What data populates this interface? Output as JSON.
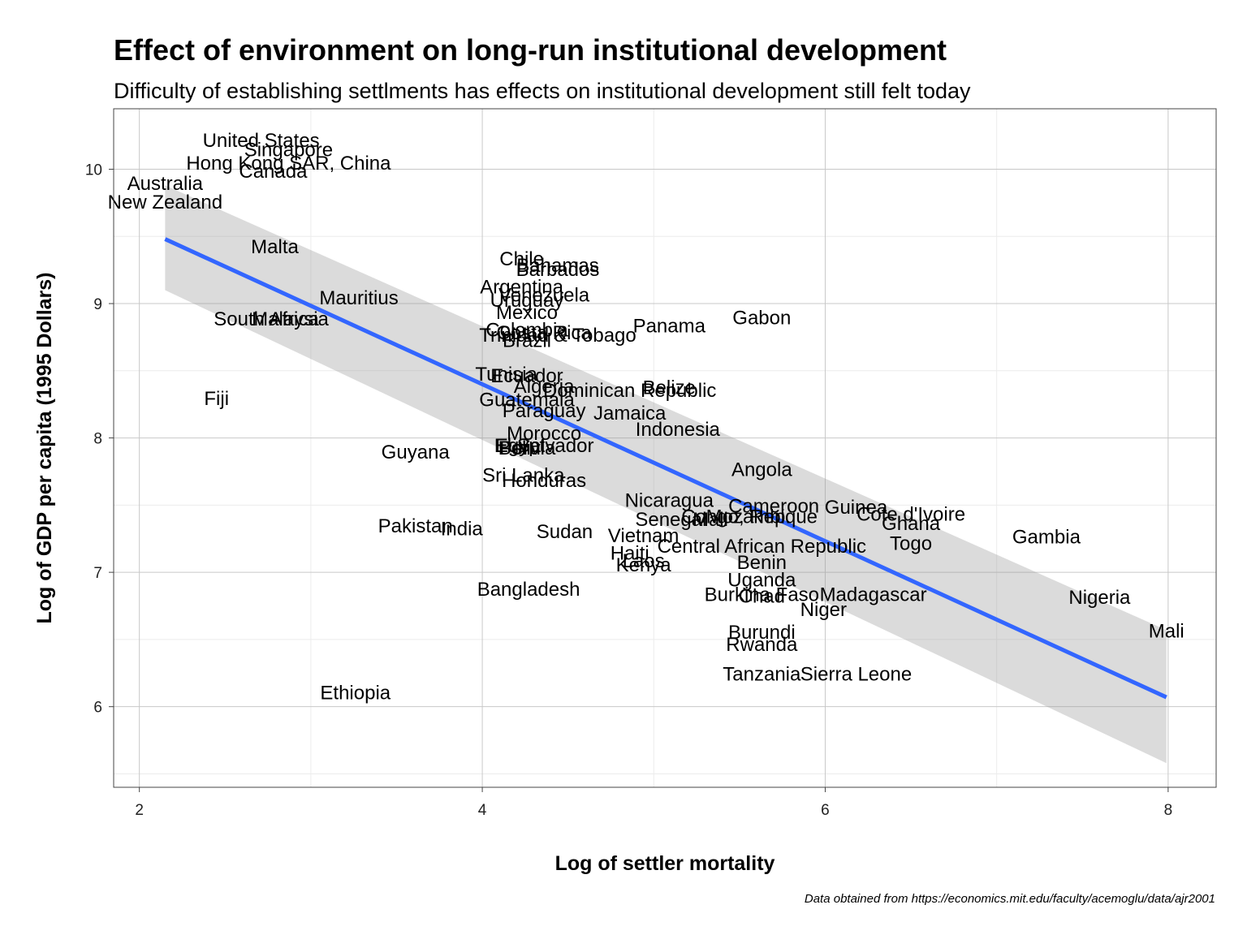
{
  "chart_data": {
    "type": "scatter",
    "title": "Effect of environment on long-run institutional development",
    "subtitle": "Difficulty of establishing settlments has effects on institutional development still felt today",
    "xlabel": "Log of settler mortality",
    "ylabel": "Log of GDP per capita (1995 Dollars)",
    "caption": "Data obtained from https://economics.mit.edu/faculty/acemoglu/data/ajr2001",
    "xlim": [
      1.85,
      8.28
    ],
    "ylim": [
      5.4,
      10.45
    ],
    "x_ticks": [
      "2",
      "4",
      "6",
      "8"
    ],
    "y_ticks": [
      "6",
      "7",
      "8",
      "9",
      "10"
    ],
    "grid": true,
    "smooth": {
      "method": "linear",
      "color": "#3366ff",
      "start": [
        2.15,
        9.48
      ],
      "end": [
        7.99,
        6.07
      ],
      "band_start": [
        9.1,
        9.88
      ],
      "band_end": [
        5.58,
        6.57
      ]
    },
    "points": [
      {
        "label": "United States",
        "x": 2.71,
        "y": 10.22
      },
      {
        "label": "Singapore",
        "x": 2.87,
        "y": 10.15
      },
      {
        "label": "Hong Kong SAR, China",
        "x": 2.87,
        "y": 10.05
      },
      {
        "label": "Canada",
        "x": 2.78,
        "y": 9.99
      },
      {
        "label": "Australia",
        "x": 2.15,
        "y": 9.9
      },
      {
        "label": "New Zealand",
        "x": 2.15,
        "y": 9.76
      },
      {
        "label": "Malta",
        "x": 2.79,
        "y": 9.43
      },
      {
        "label": "Mauritius",
        "x": 3.28,
        "y": 9.05
      },
      {
        "label": "South Africa",
        "x": 2.74,
        "y": 8.89
      },
      {
        "label": "Malaysia",
        "x": 2.88,
        "y": 8.89
      },
      {
        "label": "Fiji",
        "x": 2.45,
        "y": 8.3
      },
      {
        "label": "Guyana",
        "x": 3.61,
        "y": 7.9
      },
      {
        "label": "Pakistan",
        "x": 3.61,
        "y": 7.35
      },
      {
        "label": "India",
        "x": 3.88,
        "y": 7.33
      },
      {
        "label": "Ethiopia",
        "x": 3.26,
        "y": 6.11
      },
      {
        "label": "Chile",
        "x": 4.23,
        "y": 9.34
      },
      {
        "label": "Bahamas",
        "x": 4.44,
        "y": 9.29
      },
      {
        "label": "Barbados",
        "x": 4.44,
        "y": 9.26
      },
      {
        "label": "Argentina",
        "x": 4.23,
        "y": 9.13
      },
      {
        "label": "Venezuela",
        "x": 4.36,
        "y": 9.07
      },
      {
        "label": "Uruguay",
        "x": 4.26,
        "y": 9.03
      },
      {
        "label": "Mexico",
        "x": 4.26,
        "y": 8.94
      },
      {
        "label": "Colombia",
        "x": 4.26,
        "y": 8.81
      },
      {
        "label": "Costa Rica",
        "x": 4.36,
        "y": 8.79
      },
      {
        "label": "Trinidad & Tobago",
        "x": 4.44,
        "y": 8.77
      },
      {
        "label": "Brazil",
        "x": 4.26,
        "y": 8.73
      },
      {
        "label": "Panama",
        "x": 5.09,
        "y": 8.84
      },
      {
        "label": "Gabon",
        "x": 5.63,
        "y": 8.9
      },
      {
        "label": "Tunisia",
        "x": 4.14,
        "y": 8.48
      },
      {
        "label": "Ecuador",
        "x": 4.26,
        "y": 8.47
      },
      {
        "label": "Algeria",
        "x": 4.36,
        "y": 8.39
      },
      {
        "label": "Dominican Republic",
        "x": 4.86,
        "y": 8.36
      },
      {
        "label": "Belize",
        "x": 5.09,
        "y": 8.38
      },
      {
        "label": "Guatemala",
        "x": 4.26,
        "y": 8.29
      },
      {
        "label": "Paraguay",
        "x": 4.36,
        "y": 8.21
      },
      {
        "label": "Jamaica",
        "x": 4.86,
        "y": 8.19
      },
      {
        "label": "Indonesia",
        "x": 5.14,
        "y": 8.07
      },
      {
        "label": "Morocco",
        "x": 4.36,
        "y": 8.04
      },
      {
        "label": "El Salvador",
        "x": 4.36,
        "y": 7.95
      },
      {
        "label": "Egypt",
        "x": 4.22,
        "y": 7.95
      },
      {
        "label": "Peru",
        "x": 4.22,
        "y": 7.93
      },
      {
        "label": "Bolivia",
        "x": 4.26,
        "y": 7.93
      },
      {
        "label": "Sri Lanka",
        "x": 4.24,
        "y": 7.73
      },
      {
        "label": "Honduras",
        "x": 4.36,
        "y": 7.69
      },
      {
        "label": "Angola",
        "x": 5.63,
        "y": 7.77
      },
      {
        "label": "Nicaragua",
        "x": 5.09,
        "y": 7.54
      },
      {
        "label": "Cameroon",
        "x": 5.7,
        "y": 7.5
      },
      {
        "label": "Guinea",
        "x": 6.18,
        "y": 7.49
      },
      {
        "label": "Cote d'Ivoire",
        "x": 6.5,
        "y": 7.44
      },
      {
        "label": "Senegal",
        "x": 5.1,
        "y": 7.4
      },
      {
        "label": "Mali",
        "x": 5.33,
        "y": 7.4
      },
      {
        "label": "Congo, Rep.",
        "x": 5.48,
        "y": 7.42
      },
      {
        "label": "Mozambique",
        "x": 5.63,
        "y": 7.42
      },
      {
        "label": "Ghana",
        "x": 6.5,
        "y": 7.37
      },
      {
        "label": "Sudan",
        "x": 4.48,
        "y": 7.31
      },
      {
        "label": "Vietnam",
        "x": 4.94,
        "y": 7.28
      },
      {
        "label": "Togo",
        "x": 6.5,
        "y": 7.22
      },
      {
        "label": "Gambia",
        "x": 7.29,
        "y": 7.27
      },
      {
        "label": "Haiti",
        "x": 4.86,
        "y": 7.15
      },
      {
        "label": "Central African Republic",
        "x": 5.63,
        "y": 7.2
      },
      {
        "label": "Laos",
        "x": 4.94,
        "y": 7.09
      },
      {
        "label": "Kenya",
        "x": 4.94,
        "y": 7.06
      },
      {
        "label": "Benin",
        "x": 5.63,
        "y": 7.08
      },
      {
        "label": "Uganda",
        "x": 5.63,
        "y": 6.95
      },
      {
        "label": "Bangladesh",
        "x": 4.27,
        "y": 6.88
      },
      {
        "label": "Burkina Faso",
        "x": 5.63,
        "y": 6.84
      },
      {
        "label": "Chad",
        "x": 5.63,
        "y": 6.83
      },
      {
        "label": "Madagascar",
        "x": 6.28,
        "y": 6.84
      },
      {
        "label": "Niger",
        "x": 5.99,
        "y": 6.73
      },
      {
        "label": "Nigeria",
        "x": 7.6,
        "y": 6.82
      },
      {
        "label": "Mali",
        "x": 7.99,
        "y": 6.57
      },
      {
        "label": "Burundi",
        "x": 5.63,
        "y": 6.56
      },
      {
        "label": "Rwanda",
        "x": 5.63,
        "y": 6.47
      },
      {
        "label": "Tanzania",
        "x": 5.63,
        "y": 6.25
      },
      {
        "label": "Sierra Leone",
        "x": 6.18,
        "y": 6.25
      }
    ]
  }
}
